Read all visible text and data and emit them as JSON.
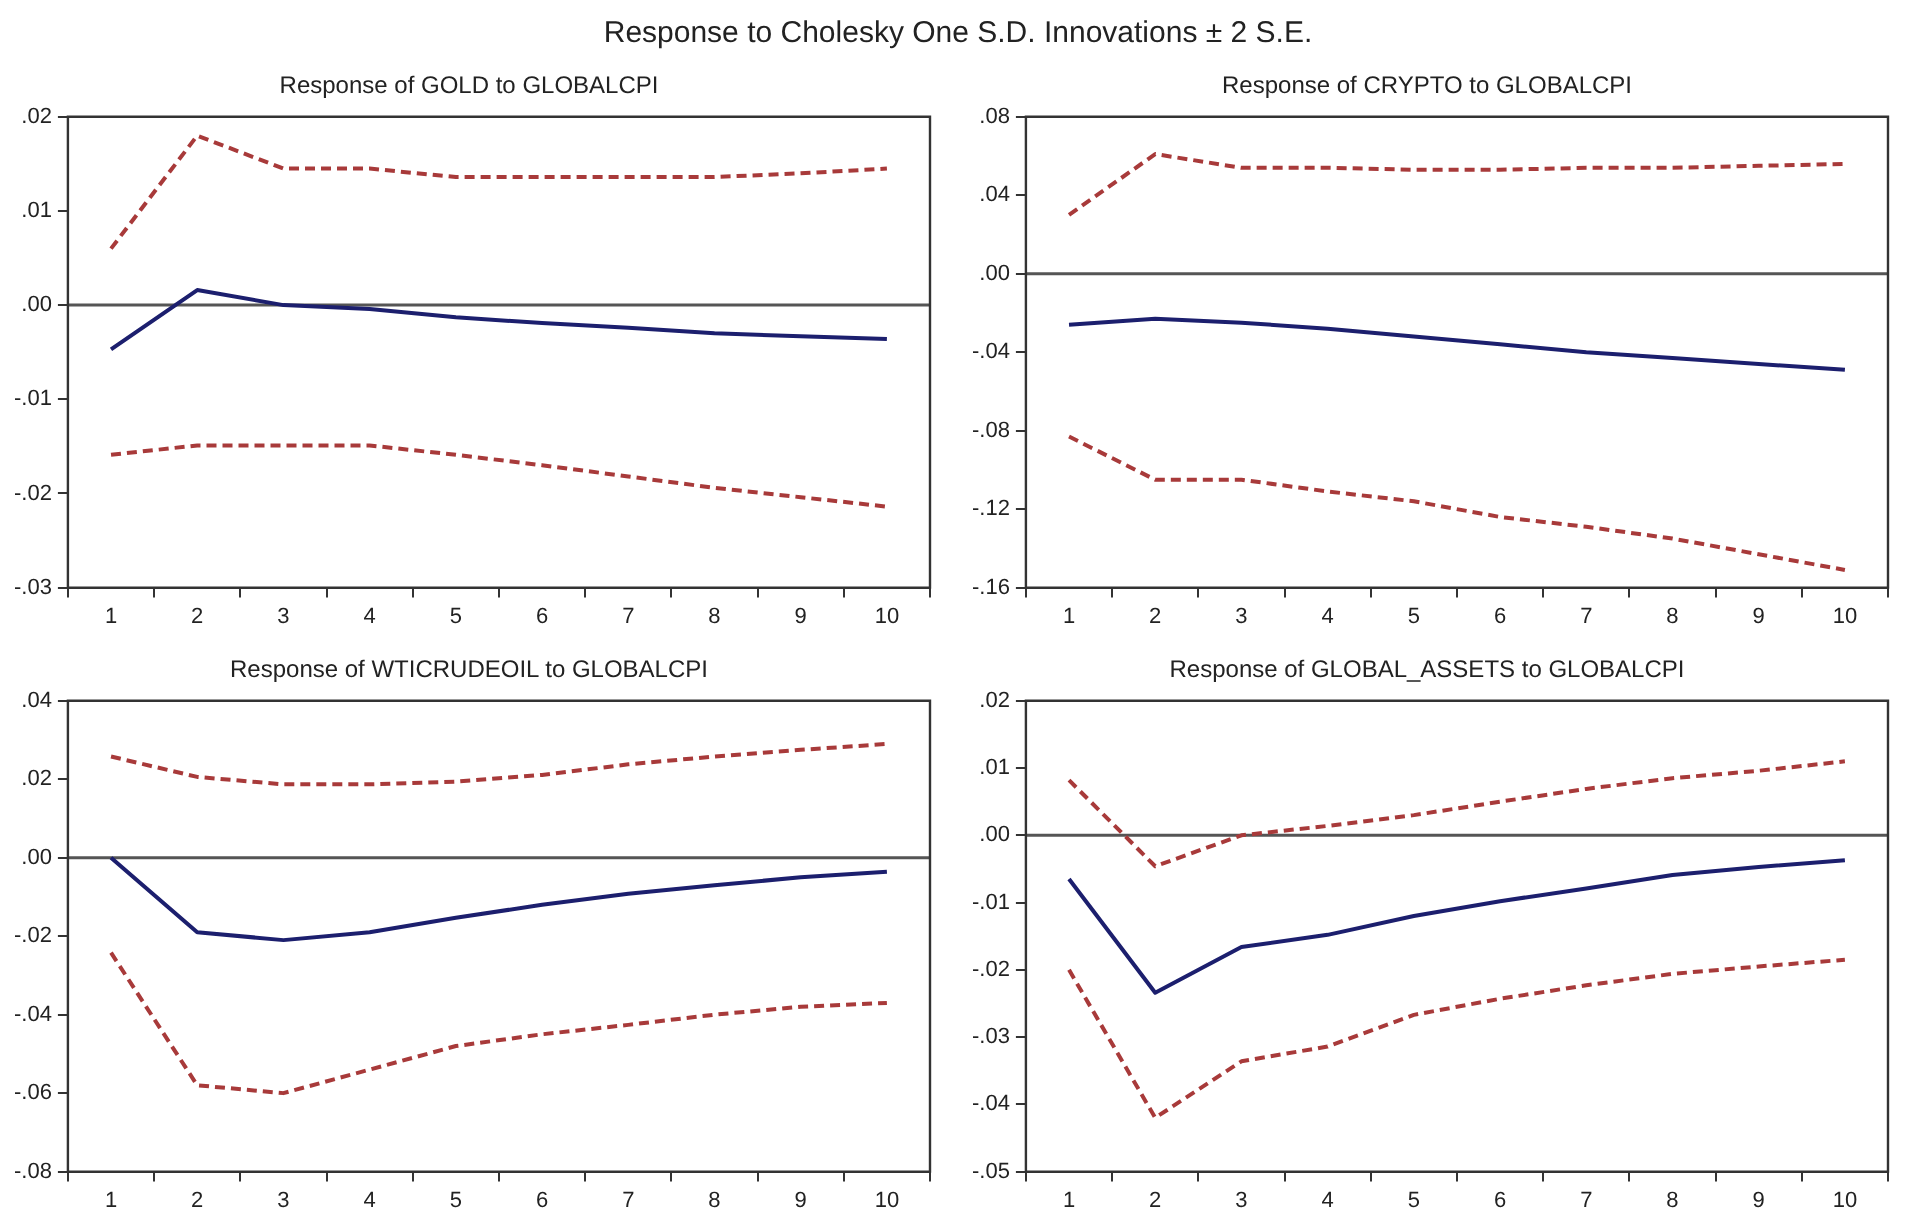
{
  "chart_data": [
    {
      "type": "other",
      "title": "Response to Cholesky One S.D. Innovations ± 2 S.E."
    },
    {
      "type": "line",
      "title": "Response of GOLD to GLOBALCPI",
      "categories": [
        "1",
        "2",
        "3",
        "4",
        "5",
        "6",
        "7",
        "8",
        "9",
        "10"
      ],
      "marker": "none",
      "grid": false,
      "legend": false,
      "ylim": [
        -0.03,
        0.02
      ],
      "yticks": [
        {
          "value": -0.03,
          "label": "-.03"
        },
        {
          "value": -0.02,
          "label": "-.02"
        },
        {
          "value": -0.01,
          "label": "-.01"
        },
        {
          "value": 0,
          "label": ".00"
        },
        {
          "value": 0.01,
          "label": ".01"
        },
        {
          "value": 0.02,
          "label": ".02"
        }
      ],
      "ref_lines": [
        {
          "axis": "y",
          "value": 0,
          "color": "#555555"
        }
      ],
      "series": [
        {
          "color": "#1c1f6e",
          "line_style": "solid",
          "values": [
            -0.0047,
            0.0016,
            0.0,
            -0.0004,
            -0.0013,
            -0.0019,
            -0.0024,
            -0.003,
            -0.0033,
            -0.0036
          ]
        },
        {
          "color": "#a83a3a",
          "line_style": "dashed",
          "values": [
            0.006,
            0.018,
            0.0145,
            0.0145,
            0.0136,
            0.0136,
            0.0136,
            0.0136,
            0.014,
            0.0145
          ]
        },
        {
          "color": "#a83a3a",
          "line_style": "dashed",
          "values": [
            -0.0159,
            -0.0149,
            -0.0149,
            -0.0149,
            -0.0159,
            -0.017,
            -0.0182,
            -0.0194,
            -0.0204,
            -0.0214
          ]
        }
      ]
    },
    {
      "type": "line",
      "title": "Response of CRYPTO to GLOBALCPI",
      "categories": [
        "1",
        "2",
        "3",
        "4",
        "5",
        "6",
        "7",
        "8",
        "9",
        "10"
      ],
      "marker": "none",
      "grid": false,
      "legend": false,
      "ylim": [
        -0.16,
        0.08
      ],
      "yticks": [
        {
          "value": -0.16,
          "label": "-.16"
        },
        {
          "value": -0.12,
          "label": "-.12"
        },
        {
          "value": -0.08,
          "label": "-.08"
        },
        {
          "value": -0.04,
          "label": "-.04"
        },
        {
          "value": 0,
          "label": ".00"
        },
        {
          "value": 0.04,
          "label": ".04"
        },
        {
          "value": 0.08,
          "label": ".08"
        }
      ],
      "ref_lines": [
        {
          "axis": "y",
          "value": 0,
          "color": "#555555"
        }
      ],
      "series": [
        {
          "color": "#1c1f6e",
          "line_style": "solid",
          "values": [
            -0.026,
            -0.023,
            -0.025,
            -0.028,
            -0.032,
            -0.036,
            -0.04,
            -0.043,
            -0.046,
            -0.049
          ]
        },
        {
          "color": "#a83a3a",
          "line_style": "dashed",
          "values": [
            0.03,
            0.061,
            0.054,
            0.054,
            0.053,
            0.053,
            0.054,
            0.054,
            0.055,
            0.056
          ]
        },
        {
          "color": "#a83a3a",
          "line_style": "dashed",
          "values": [
            -0.083,
            -0.105,
            -0.105,
            -0.111,
            -0.116,
            -0.124,
            -0.129,
            -0.135,
            -0.143,
            -0.151
          ]
        }
      ]
    },
    {
      "type": "line",
      "title": "Response of WTICRUDEOIL to GLOBALCPI",
      "categories": [
        "1",
        "2",
        "3",
        "4",
        "5",
        "6",
        "7",
        "8",
        "9",
        "10"
      ],
      "marker": "none",
      "grid": false,
      "legend": false,
      "ylim": [
        -0.08,
        0.04
      ],
      "yticks": [
        {
          "value": -0.08,
          "label": "-.08"
        },
        {
          "value": -0.06,
          "label": "-.06"
        },
        {
          "value": -0.04,
          "label": "-.04"
        },
        {
          "value": -0.02,
          "label": "-.02"
        },
        {
          "value": 0,
          "label": ".00"
        },
        {
          "value": 0.02,
          "label": ".02"
        },
        {
          "value": 0.04,
          "label": ".04"
        }
      ],
      "ref_lines": [
        {
          "axis": "y",
          "value": 0,
          "color": "#555555"
        }
      ],
      "series": [
        {
          "color": "#1c1f6e",
          "line_style": "solid",
          "values": [
            0.0,
            -0.019,
            -0.021,
            -0.019,
            -0.0153,
            -0.012,
            -0.0092,
            -0.007,
            -0.005,
            -0.0036
          ]
        },
        {
          "color": "#a83a3a",
          "line_style": "dashed",
          "values": [
            0.0258,
            0.0206,
            0.0187,
            0.0187,
            0.0194,
            0.0211,
            0.0238,
            0.0258,
            0.0275,
            0.029
          ]
        },
        {
          "color": "#a83a3a",
          "line_style": "dashed",
          "values": [
            -0.0242,
            -0.058,
            -0.06,
            -0.054,
            -0.048,
            -0.045,
            -0.0426,
            -0.04,
            -0.038,
            -0.037
          ]
        }
      ]
    },
    {
      "type": "line",
      "title": "Response of GLOBAL_ASSETS to GLOBALCPI",
      "categories": [
        "1",
        "2",
        "3",
        "4",
        "5",
        "6",
        "7",
        "8",
        "9",
        "10"
      ],
      "marker": "none",
      "grid": false,
      "legend": false,
      "ylim": [
        -0.05,
        0.02
      ],
      "yticks": [
        {
          "value": -0.05,
          "label": "-.05"
        },
        {
          "value": -0.04,
          "label": "-.04"
        },
        {
          "value": -0.03,
          "label": "-.03"
        },
        {
          "value": -0.02,
          "label": "-.02"
        },
        {
          "value": -0.01,
          "label": "-.01"
        },
        {
          "value": 0,
          "label": ".00"
        },
        {
          "value": 0.01,
          "label": ".01"
        },
        {
          "value": 0.02,
          "label": ".02"
        }
      ],
      "ref_lines": [
        {
          "axis": "y",
          "value": 0,
          "color": "#555555"
        }
      ],
      "series": [
        {
          "color": "#1c1f6e",
          "line_style": "solid",
          "values": [
            -0.0065,
            -0.0234,
            -0.0166,
            -0.0148,
            -0.012,
            -0.0098,
            -0.0079,
            -0.0059,
            -0.0047,
            -0.0037
          ]
        },
        {
          "color": "#a83a3a",
          "line_style": "dashed",
          "values": [
            0.0082,
            -0.0046,
            0.0,
            0.0014,
            0.003,
            0.005,
            0.0069,
            0.0085,
            0.0096,
            0.011
          ]
        },
        {
          "color": "#a83a3a",
          "line_style": "dashed",
          "values": [
            -0.02,
            -0.042,
            -0.0336,
            -0.0314,
            -0.0267,
            -0.0243,
            -0.0223,
            -0.0206,
            -0.0195,
            -0.0185
          ]
        }
      ]
    }
  ]
}
